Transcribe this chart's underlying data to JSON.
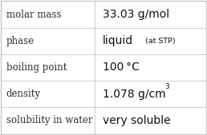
{
  "rows": [
    {
      "label": "molar mass",
      "value": "33.03 g/mol",
      "type": "normal"
    },
    {
      "label": "phase",
      "value": "liquid",
      "type": "phase",
      "suffix": "(at STP)"
    },
    {
      "label": "boiling point",
      "value": "100 °C",
      "type": "normal"
    },
    {
      "label": "density",
      "value": "1.078 g/cm",
      "type": "super",
      "super": "3"
    },
    {
      "label": "solubility in water",
      "value": "very soluble",
      "type": "normal"
    }
  ],
  "background_color": "#ffffff",
  "grid_color": "#c8c8c8",
  "label_color": "#303030",
  "value_color": "#101010",
  "label_fontsize": 8.5,
  "value_fontsize": 10.0,
  "small_fontsize": 6.8,
  "super_fontsize": 6.5,
  "col_split": 0.455,
  "figsize": [
    2.58,
    1.69
  ],
  "dpi": 100
}
